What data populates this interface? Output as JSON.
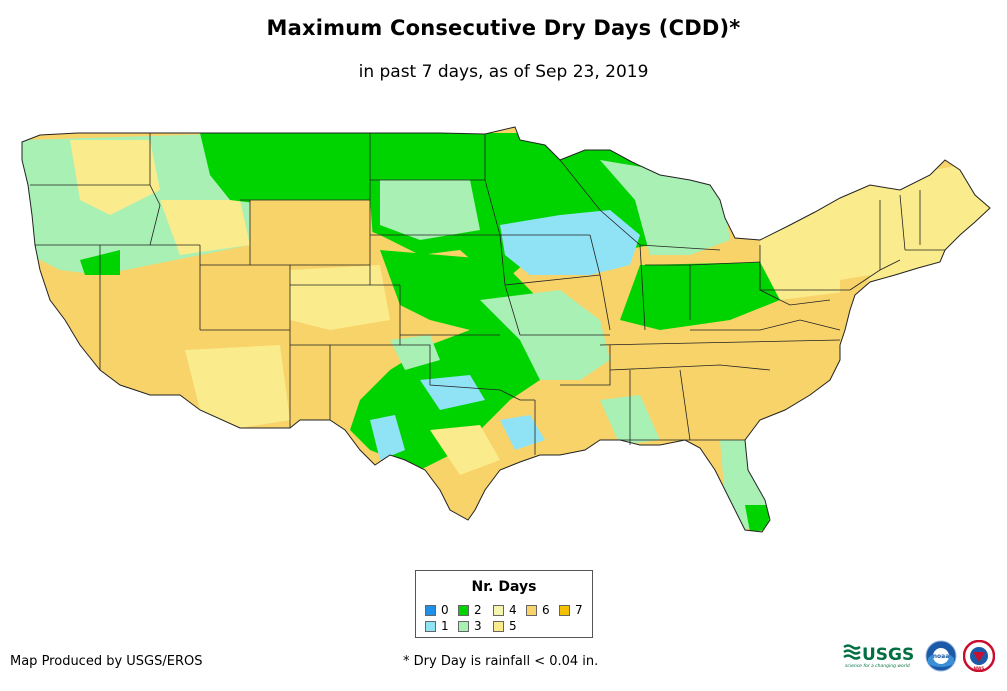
{
  "title": "Maximum Consecutive Dry Days (CDD)*",
  "subtitle": "in past 7 days, as of Sep 23, 2019",
  "legend": {
    "title": "Nr. Days",
    "items": [
      {
        "label": "0",
        "color": "#1e90e8"
      },
      {
        "label": "1",
        "color": "#8fe3f5"
      },
      {
        "label": "2",
        "color": "#00d400"
      },
      {
        "label": "3",
        "color": "#a8f0b4"
      },
      {
        "label": "4",
        "color": "#f5f5b0"
      },
      {
        "label": "5",
        "color": "#faeb8c"
      },
      {
        "label": "6",
        "color": "#f7d36a"
      },
      {
        "label": "7",
        "color": "#f5c000"
      }
    ]
  },
  "footer": {
    "producer": "Map Produced by USGS/EROS",
    "footnote": "* Dry Day is rainfall < 0.04 in."
  },
  "logos": {
    "usgs": "USGS",
    "usgs_tagline": "science for a changing world",
    "noaa": "noaa",
    "nws": "NWS"
  }
}
